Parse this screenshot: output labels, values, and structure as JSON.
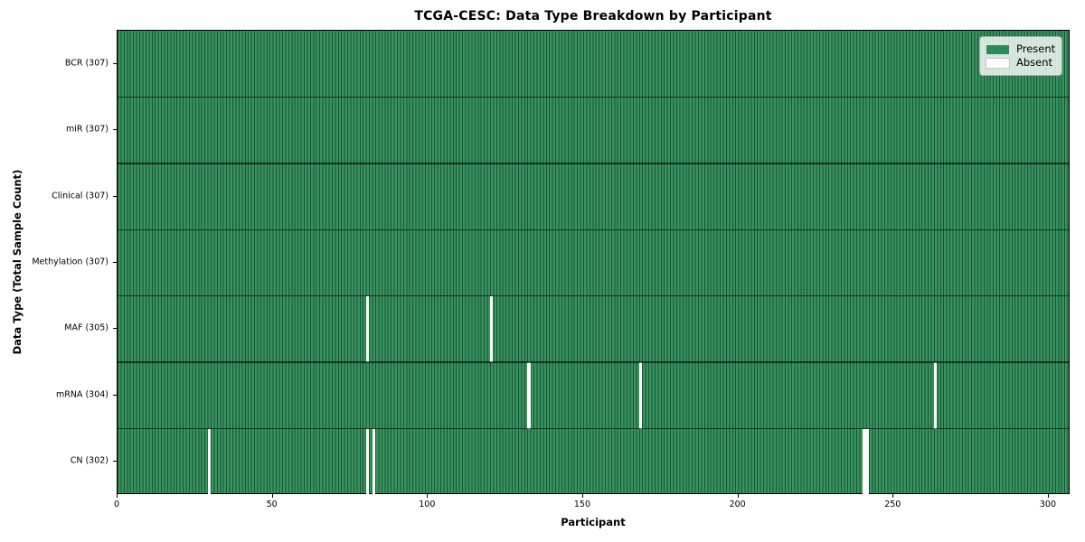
{
  "colors": {
    "present": "#2e8b57",
    "present_field": "#36945f",
    "absent": "#ffffff",
    "cell_edge": "rgba(0,0,0,0.45)",
    "row_separator": "rgba(0,0,0,0.6)",
    "axis_text": "#000000",
    "legend_bg": "rgba(255,255,255,0.8)",
    "legend_border": "#a8a8a8"
  },
  "chart_data": {
    "type": "heatmap",
    "title": "TCGA-CESC: Data Type Breakdown by Participant",
    "xlabel": "Participant",
    "ylabel": "Data Type (Total Sample Count)",
    "n_participants": 307,
    "xlim": [
      0,
      307
    ],
    "x_ticks": [
      0,
      50,
      100,
      150,
      200,
      250,
      300
    ],
    "grid": false,
    "legend_position": "upper right",
    "legend": [
      {
        "label": "Present",
        "color": "#2e8b57"
      },
      {
        "label": "Absent",
        "color": "#ffffff"
      }
    ],
    "rows": [
      {
        "label": "BCR (307)",
        "data_type": "BCR",
        "total_sample_count": 307,
        "absent_participants": []
      },
      {
        "label": "miR (307)",
        "data_type": "miR",
        "total_sample_count": 307,
        "absent_participants": []
      },
      {
        "label": "Clinical (307)",
        "data_type": "Clinical",
        "total_sample_count": 307,
        "absent_participants": []
      },
      {
        "label": "Methylation (307)",
        "data_type": "Methylation",
        "total_sample_count": 307,
        "absent_participants": []
      },
      {
        "label": "MAF (305)",
        "data_type": "MAF",
        "total_sample_count": 305,
        "absent_participants": [
          80,
          120
        ]
      },
      {
        "label": "mRNA (304)",
        "data_type": "mRNA",
        "total_sample_count": 304,
        "absent_participants": [
          132,
          168,
          263
        ]
      },
      {
        "label": "CN (302)",
        "data_type": "CN",
        "total_sample_count": 302,
        "absent_participants": [
          29,
          80,
          82,
          240,
          241
        ]
      }
    ]
  }
}
